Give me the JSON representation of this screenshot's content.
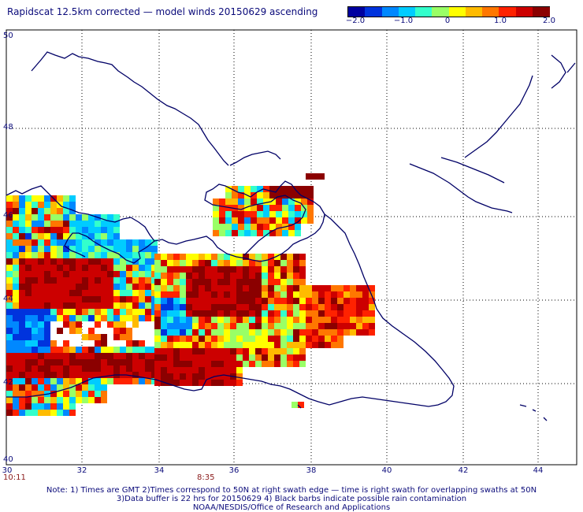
{
  "title": "Rapidscat 12.5km corrected — model winds 20150629 ascending",
  "colorbar": {
    "ticks": [
      "−2.0",
      "−1.0",
      "0",
      "1.0",
      "2.0"
    ],
    "colors": [
      "#0000a0",
      "#0033dd",
      "#0088ff",
      "#00ccff",
      "#33ffcc",
      "#99ff66",
      "#ffff00",
      "#ffbb00",
      "#ff7700",
      "#ff2200",
      "#cc0000",
      "#8b0000"
    ]
  },
  "axes": {
    "lat_labels": [
      "50",
      "48",
      "46",
      "44",
      "42",
      "40"
    ],
    "lon_labels": [
      "30",
      "32",
      "34",
      "36",
      "38",
      "40",
      "42",
      "44"
    ],
    "time_labels": [
      "10:11",
      "8:35"
    ]
  },
  "notes": [
    "Note: 1) Times are GMT 2)Times correspond to 50N at right swath edge — time is right swath for overlapping swaths at 50N",
    "3)Data buffer is 22 hrs for 20150629 4) Black barbs indicate possible rain contamination",
    "NOAA/NESDIS/Office of Research and Applications"
  ],
  "colors": {
    "text": "#0a0a7a",
    "coast": "#000066",
    "time": "#8a1a1a"
  }
}
